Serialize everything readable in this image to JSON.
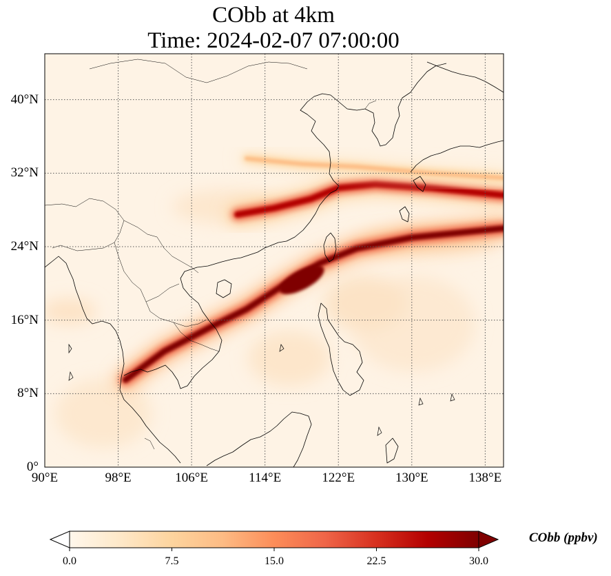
{
  "title": {
    "line1": "CObb at 4km",
    "line2": "Time: 2024-02-07 07:00:00"
  },
  "map": {
    "lon_range": [
      90,
      140
    ],
    "lat_range": [
      0,
      45
    ],
    "xticks": [
      {
        "value": 90,
        "label": "90°E"
      },
      {
        "value": 98,
        "label": "98°E"
      },
      {
        "value": 106,
        "label": "106°E"
      },
      {
        "value": 114,
        "label": "114°E"
      },
      {
        "value": 122,
        "label": "122°E"
      },
      {
        "value": 130,
        "label": "130°E"
      },
      {
        "value": 138,
        "label": "138°E"
      }
    ],
    "yticks": [
      {
        "value": 0,
        "label": "0°"
      },
      {
        "value": 8,
        "label": "8°N"
      },
      {
        "value": 16,
        "label": "16°N"
      },
      {
        "value": 24,
        "label": "24°N"
      },
      {
        "value": 32,
        "label": "32°N"
      },
      {
        "value": 40,
        "label": "40°N"
      }
    ],
    "gridlines": "dotted",
    "field": "CObb",
    "plumes": [
      {
        "desc": "main band",
        "path": [
          [
            98.8,
            9.5
          ],
          [
            103,
            12.6
          ],
          [
            108,
            15.2
          ],
          [
            112,
            17.2
          ],
          [
            116,
            19.8
          ],
          [
            120,
            22.2
          ],
          [
            124,
            23.8
          ],
          [
            130,
            25.0
          ],
          [
            140,
            26.0
          ]
        ],
        "peak": 30
      },
      {
        "desc": "east china",
        "path": [
          [
            111,
            27.5
          ],
          [
            115,
            28.2
          ],
          [
            119,
            29.2
          ],
          [
            122,
            30.4
          ],
          [
            126,
            30.8
          ],
          [
            132,
            30.4
          ],
          [
            140,
            29.6
          ]
        ],
        "peak": 26
      },
      {
        "desc": "upper stream",
        "path": [
          [
            112,
            33.6
          ],
          [
            118,
            33.0
          ],
          [
            124,
            32.7
          ],
          [
            132,
            32.0
          ],
          [
            140,
            31.5
          ]
        ],
        "peak": 12
      }
    ]
  },
  "colorbar": {
    "label": "CObb (ppbv)",
    "min": 0.0,
    "max": 30.0,
    "extend": "both",
    "cmap": "OrRd",
    "colors": [
      "#fff7ec",
      "#fee8c8",
      "#fdd49e",
      "#fdbb84",
      "#fc8d59",
      "#ef6548",
      "#d7301f",
      "#b30000",
      "#7f0000"
    ],
    "ticks": [
      {
        "value": 0.0,
        "label": "0.0"
      },
      {
        "value": 7.5,
        "label": "7.5"
      },
      {
        "value": 15.0,
        "label": "15.0"
      },
      {
        "value": 22.5,
        "label": "22.5"
      },
      {
        "value": 30.0,
        "label": "30.0"
      }
    ]
  }
}
